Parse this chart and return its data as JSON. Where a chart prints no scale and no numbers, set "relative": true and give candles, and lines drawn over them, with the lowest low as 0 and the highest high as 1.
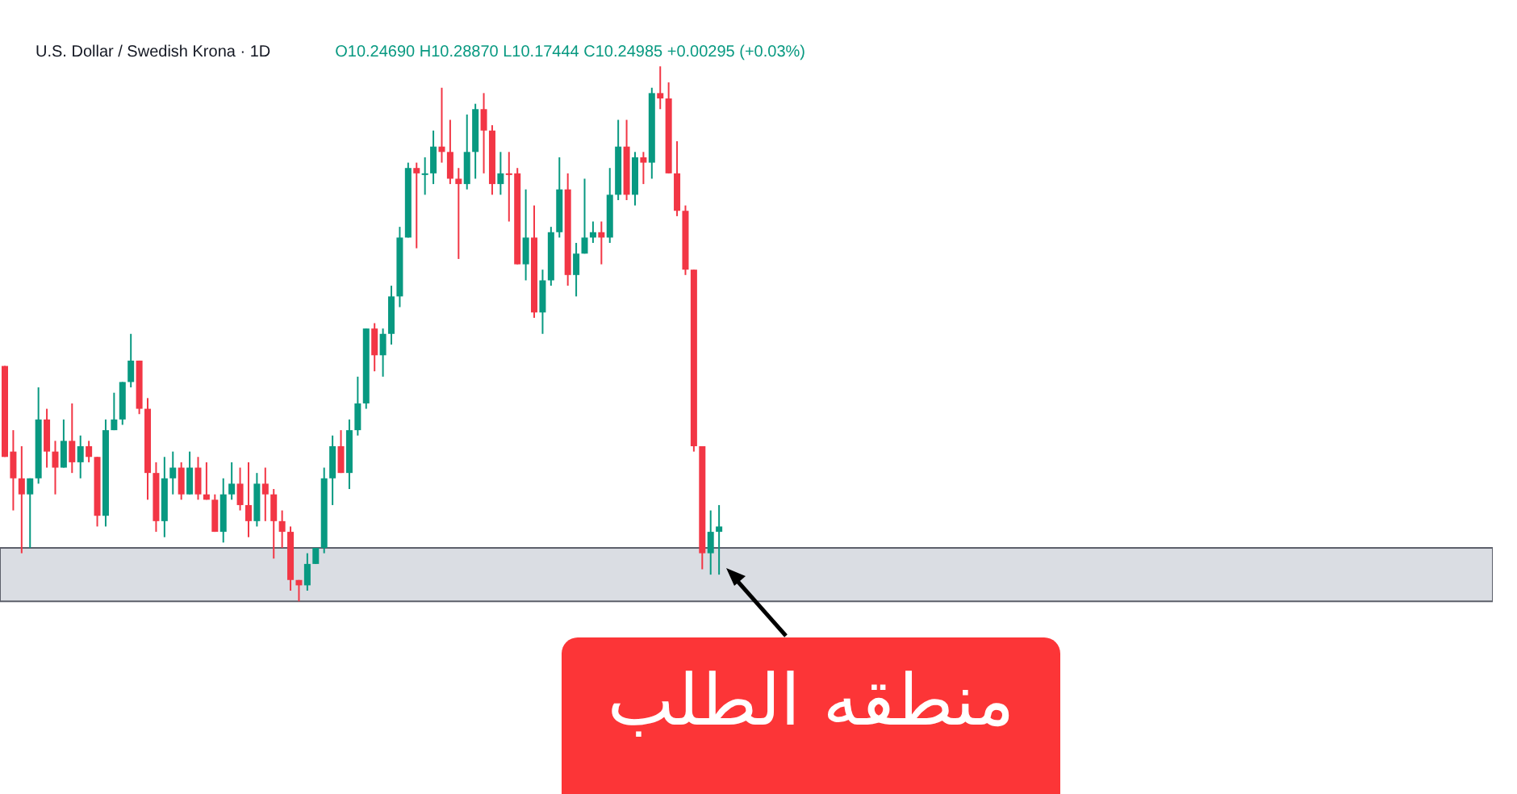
{
  "chart_data": {
    "type": "candlestick",
    "title": "U.S. Dollar / Swedish Krona · 1D",
    "subtitle": "O10.24690 H10.28870 L10.17444 C10.24985 +0.00295 (+0.03%)",
    "relative": true,
    "categories": [
      null,
      null,
      null,
      null,
      null,
      null,
      null,
      null,
      null,
      null,
      null,
      null,
      null,
      null,
      null,
      null,
      null,
      null,
      null,
      null,
      null,
      null,
      null,
      null,
      null,
      null,
      null,
      null,
      null,
      null,
      null,
      null,
      null,
      null,
      null,
      null,
      null,
      null,
      null,
      null,
      null,
      null,
      null,
      null,
      null,
      null,
      null,
      null,
      null,
      null,
      null,
      null,
      null,
      null,
      null,
      null,
      null,
      null,
      null,
      null,
      null,
      null,
      null,
      null,
      null,
      null,
      null,
      null,
      null,
      null,
      null,
      null,
      null,
      null,
      null,
      null,
      null,
      null,
      null,
      null,
      null,
      null,
      null,
      null,
      null,
      null
    ],
    "ohlc": [
      [
        0.44,
        0.44,
        0.27,
        0.27
      ],
      [
        0.28,
        0.32,
        0.17,
        0.23
      ],
      [
        0.23,
        0.29,
        0.09,
        0.2
      ],
      [
        0.2,
        0.23,
        0.1,
        0.23
      ],
      [
        0.23,
        0.4,
        0.22,
        0.34
      ],
      [
        0.34,
        0.36,
        0.25,
        0.28
      ],
      [
        0.28,
        0.3,
        0.2,
        0.25
      ],
      [
        0.25,
        0.34,
        0.25,
        0.3
      ],
      [
        0.3,
        0.37,
        0.24,
        0.26
      ],
      [
        0.26,
        0.31,
        0.23,
        0.29
      ],
      [
        0.29,
        0.3,
        0.26,
        0.27
      ],
      [
        0.27,
        0.27,
        0.14,
        0.16
      ],
      [
        0.16,
        0.34,
        0.14,
        0.32
      ],
      [
        0.32,
        0.39,
        0.32,
        0.34
      ],
      [
        0.34,
        0.41,
        0.33,
        0.41
      ],
      [
        0.41,
        0.5,
        0.4,
        0.45
      ],
      [
        0.45,
        0.45,
        0.35,
        0.36
      ],
      [
        0.36,
        0.38,
        0.19,
        0.24
      ],
      [
        0.24,
        0.26,
        0.13,
        0.15
      ],
      [
        0.15,
        0.27,
        0.12,
        0.23
      ],
      [
        0.23,
        0.28,
        0.2,
        0.25
      ],
      [
        0.25,
        0.26,
        0.19,
        0.2
      ],
      [
        0.2,
        0.28,
        0.2,
        0.25
      ],
      [
        0.25,
        0.27,
        0.19,
        0.2
      ],
      [
        0.2,
        0.26,
        0.19,
        0.19
      ],
      [
        0.19,
        0.2,
        0.13,
        0.13
      ],
      [
        0.13,
        0.23,
        0.11,
        0.2
      ],
      [
        0.2,
        0.26,
        0.19,
        0.22
      ],
      [
        0.22,
        0.25,
        0.17,
        0.18
      ],
      [
        0.18,
        0.26,
        0.12,
        0.15
      ],
      [
        0.15,
        0.24,
        0.14,
        0.22
      ],
      [
        0.22,
        0.25,
        0.15,
        0.2
      ],
      [
        0.2,
        0.21,
        0.08,
        0.15
      ],
      [
        0.15,
        0.17,
        0.1,
        0.13
      ],
      [
        0.13,
        0.14,
        0.02,
        0.04
      ],
      [
        0.04,
        0.04,
        0,
        0.03
      ],
      [
        0.03,
        0.09,
        0.02,
        0.07
      ],
      [
        0.07,
        0.1,
        0.07,
        0.1
      ],
      [
        0.1,
        0.25,
        0.09,
        0.23
      ],
      [
        0.23,
        0.31,
        0.18,
        0.29
      ],
      [
        0.29,
        0.32,
        0.24,
        0.24
      ],
      [
        0.24,
        0.34,
        0.21,
        0.32
      ],
      [
        0.32,
        0.42,
        0.31,
        0.37
      ],
      [
        0.37,
        0.51,
        0.36,
        0.51
      ],
      [
        0.51,
        0.52,
        0.43,
        0.46
      ],
      [
        0.46,
        0.51,
        0.42,
        0.5
      ],
      [
        0.5,
        0.59,
        0.48,
        0.57
      ],
      [
        0.57,
        0.7,
        0.55,
        0.68
      ],
      [
        0.68,
        0.82,
        0.68,
        0.81
      ],
      [
        0.81,
        0.82,
        0.66,
        0.8
      ],
      [
        0.8,
        0.83,
        0.76,
        0.8
      ],
      [
        0.8,
        0.88,
        0.78,
        0.85
      ],
      [
        0.85,
        0.96,
        0.82,
        0.84
      ],
      [
        0.84,
        0.9,
        0.78,
        0.79
      ],
      [
        0.79,
        0.81,
        0.64,
        0.78
      ],
      [
        0.78,
        0.91,
        0.77,
        0.84
      ],
      [
        0.84,
        0.93,
        0.79,
        0.92
      ],
      [
        0.92,
        0.95,
        0.8,
        0.88
      ],
      [
        0.88,
        0.89,
        0.76,
        0.78
      ],
      [
        0.78,
        0.84,
        0.76,
        0.8
      ],
      [
        0.8,
        0.84,
        0.71,
        0.8
      ],
      [
        0.8,
        0.81,
        0.63,
        0.63
      ],
      [
        0.63,
        0.77,
        0.6,
        0.68
      ],
      [
        0.68,
        0.74,
        0.53,
        0.54
      ],
      [
        0.54,
        0.62,
        0.5,
        0.6
      ],
      [
        0.6,
        0.7,
        0.59,
        0.69
      ],
      [
        0.69,
        0.83,
        0.68,
        0.77
      ],
      [
        0.77,
        0.8,
        0.59,
        0.61
      ],
      [
        0.61,
        0.67,
        0.57,
        0.65
      ],
      [
        0.65,
        0.79,
        0.65,
        0.68
      ],
      [
        0.68,
        0.71,
        0.67,
        0.69
      ],
      [
        0.69,
        0.71,
        0.63,
        0.68
      ],
      [
        0.68,
        0.81,
        0.67,
        0.76
      ],
      [
        0.76,
        0.9,
        0.75,
        0.85
      ],
      [
        0.85,
        0.9,
        0.75,
        0.76
      ],
      [
        0.76,
        0.84,
        0.74,
        0.83
      ],
      [
        0.83,
        0.84,
        0.78,
        0.82
      ],
      [
        0.82,
        0.96,
        0.79,
        0.95
      ],
      [
        0.95,
        1,
        0.92,
        0.94
      ],
      [
        0.94,
        0.97,
        0.8,
        0.8
      ],
      [
        0.8,
        0.86,
        0.72,
        0.73
      ],
      [
        0.73,
        0.74,
        0.61,
        0.62
      ],
      [
        0.62,
        0.62,
        0.28,
        0.29
      ],
      [
        0.29,
        0.29,
        0.06,
        0.09
      ],
      [
        0.09,
        0.17,
        0.05,
        0.13
      ],
      [
        0.13,
        0.18,
        0.05,
        0.14
      ]
    ],
    "colors": [
      "#f23645",
      "#f23645",
      "#f23645",
      "#089981",
      "#089981",
      "#f23645",
      "#f23645",
      "#089981",
      "#f23645",
      "#089981",
      "#f23645",
      "#f23645",
      "#089981",
      "#089981",
      "#089981",
      "#089981",
      "#f23645",
      "#f23645",
      "#f23645",
      "#089981",
      "#089981",
      "#f23645",
      "#089981",
      "#f23645",
      "#f23645",
      "#f23645",
      "#089981",
      "#089981",
      "#f23645",
      "#f23645",
      "#089981",
      "#f23645",
      "#f23645",
      "#f23645",
      "#f23645",
      "#f23645",
      "#089981",
      "#089981",
      "#089981",
      "#089981",
      "#f23645",
      "#089981",
      "#089981",
      "#089981",
      "#f23645",
      "#089981",
      "#089981",
      "#089981",
      "#089981",
      "#f23645",
      "#089981",
      "#089981",
      "#f23645",
      "#f23645",
      "#f23645",
      "#089981",
      "#089981",
      "#f23645",
      "#f23645",
      "#089981",
      "#f23645",
      "#f23645",
      "#089981",
      "#f23645",
      "#089981",
      "#089981",
      "#089981",
      "#f23645",
      "#089981",
      "#089981",
      "#089981",
      "#f23645",
      "#089981",
      "#089981",
      "#f23645",
      "#089981",
      "#f23645",
      "#089981",
      "#f23645",
      "#f23645",
      "#f23645",
      "#f23645",
      "#f23645",
      "#f23645",
      "#089981",
      "#089981"
    ],
    "bands": [
      {
        "axis": "y",
        "from": 0,
        "to": 0.1,
        "label": "منطقه الطلب",
        "color": "#d1d4dc"
      }
    ]
  }
}
